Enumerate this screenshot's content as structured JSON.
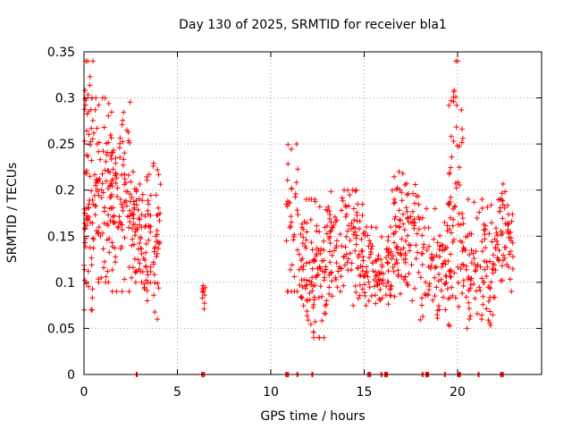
{
  "chart_data": {
    "type": "scatter",
    "title": "Day 130 of 2025, SRMTID for receiver bla1",
    "xlabel": "GPS time / hours",
    "ylabel": "SRMTID / TECUs",
    "xlim": [
      0,
      24.5
    ],
    "ylim": [
      0,
      0.35
    ],
    "x_ticks": [
      0,
      5,
      10,
      15,
      20
    ],
    "x_tick_labels": [
      "0",
      "5",
      "10",
      "15",
      "20"
    ],
    "y_ticks": [
      0,
      0.05,
      0.1,
      0.15,
      0.2,
      0.25,
      0.3,
      0.35
    ],
    "y_tick_labels": [
      "0",
      "0.05",
      "0.1",
      "0.15",
      "0.2",
      "0.25",
      "0.3",
      "0.35"
    ],
    "grid": true,
    "marker": "+",
    "color": "#ff0000",
    "series": [
      {
        "name": "SRMTID",
        "clusters": [
          {
            "x_range": [
              0.0,
              0.5
            ],
            "y_range": [
              0.07,
              0.34
            ],
            "count": 70
          },
          {
            "x_range": [
              0.5,
              1.5
            ],
            "y_range": [
              0.1,
              0.3
            ],
            "count": 90
          },
          {
            "x_range": [
              1.5,
              2.5
            ],
            "y_range": [
              0.09,
              0.3
            ],
            "count": 80
          },
          {
            "x_range": [
              2.5,
              3.0
            ],
            "y_range": [
              0.1,
              0.22
            ],
            "count": 45
          },
          {
            "x_range": [
              3.0,
              3.5
            ],
            "y_range": [
              0.08,
              0.22
            ],
            "count": 40
          },
          {
            "x_range": [
              3.5,
              4.1
            ],
            "y_range": [
              0.06,
              0.23
            ],
            "count": 40
          },
          {
            "x_range": [
              6.3,
              6.5
            ],
            "y_range": [
              0.06,
              0.12
            ],
            "count": 10
          },
          {
            "x_range": [
              10.8,
              11.5
            ],
            "y_range": [
              0.09,
              0.25
            ],
            "count": 35
          },
          {
            "x_range": [
              11.5,
              13.0
            ],
            "y_range": [
              0.04,
              0.19
            ],
            "count": 110
          },
          {
            "x_range": [
              13.0,
              15.0
            ],
            "y_range": [
              0.07,
              0.2
            ],
            "count": 120
          },
          {
            "x_range": [
              15.0,
              16.5
            ],
            "y_range": [
              0.06,
              0.16
            ],
            "count": 90
          },
          {
            "x_range": [
              16.5,
              18.0
            ],
            "y_range": [
              0.08,
              0.22
            ],
            "count": 100
          },
          {
            "x_range": [
              18.0,
              19.5
            ],
            "y_range": [
              0.05,
              0.18
            ],
            "count": 80
          },
          {
            "x_range": [
              19.5,
              20.3
            ],
            "y_range": [
              0.05,
              0.34
            ],
            "count": 70
          },
          {
            "x_range": [
              20.3,
              22.0
            ],
            "y_range": [
              0.05,
              0.19
            ],
            "count": 100
          },
          {
            "x_range": [
              22.0,
              23.0
            ],
            "y_range": [
              0.09,
              0.21
            ],
            "count": 60
          }
        ],
        "zero_points_x": [
          2.8,
          6.3,
          6.4,
          10.8,
          10.9,
          11.4,
          12.2,
          15.2,
          15.3,
          15.9,
          16.1,
          16.2,
          18.1,
          18.3,
          18.4,
          19.3,
          20.0,
          20.1,
          21.1,
          22.3,
          22.4
        ]
      }
    ]
  }
}
